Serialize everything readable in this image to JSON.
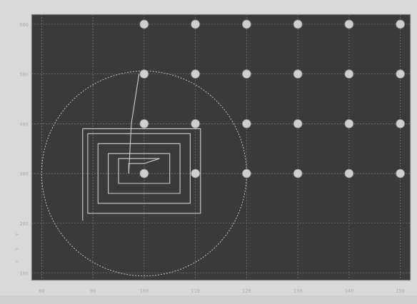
{
  "window": {
    "title": "",
    "status_text": "",
    "colors": {
      "plot_background": "#3a3a3a",
      "frame": "#d9d9d9",
      "grid": "#8a8a8a",
      "points": "#cfcfcf",
      "trace": "#cfcfcf"
    }
  },
  "chart_data": {
    "type": "scatter",
    "title": "",
    "xlabel": "",
    "ylabel": "",
    "x_ticks": [
      "80",
      "90",
      "100",
      "110",
      "120",
      "130",
      "140",
      "150"
    ],
    "y_ticks": [
      "600",
      "500",
      "400",
      "300",
      "200",
      "100"
    ],
    "xlim": [
      78,
      152
    ],
    "ylim": [
      85,
      620
    ],
    "grid": true,
    "series": [
      {
        "points": [
          [
            100,
            600
          ],
          [
            110,
            600
          ],
          [
            120,
            600
          ],
          [
            130,
            600
          ],
          [
            140,
            600
          ],
          [
            150,
            600
          ],
          [
            100,
            500
          ],
          [
            110,
            500
          ],
          [
            120,
            500
          ],
          [
            130,
            500
          ],
          [
            140,
            500
          ],
          [
            150,
            500
          ],
          [
            100,
            400
          ],
          [
            110,
            400
          ],
          [
            120,
            400
          ],
          [
            130,
            400
          ],
          [
            140,
            400
          ],
          [
            150,
            400
          ],
          [
            100,
            300
          ],
          [
            110,
            300
          ],
          [
            120,
            300
          ],
          [
            130,
            300
          ],
          [
            140,
            300
          ],
          [
            150,
            300
          ]
        ]
      }
    ],
    "circle": {
      "center": [
        100,
        300
      ],
      "radius_x": 20,
      "dashed": true
    },
    "spiral_path": [
      [
        99,
        500
      ],
      [
        97.5,
        400
      ],
      [
        97,
        300
      ],
      [
        97,
        320
      ],
      [
        100,
        320
      ],
      [
        103,
        330
      ],
      [
        95,
        330
      ],
      [
        95,
        280
      ],
      [
        105,
        280
      ],
      [
        105,
        340
      ],
      [
        93,
        340
      ],
      [
        93,
        260
      ],
      [
        107,
        260
      ],
      [
        107,
        360
      ],
      [
        91,
        360
      ],
      [
        91,
        240
      ],
      [
        109,
        240
      ],
      [
        109,
        380
      ],
      [
        89,
        380
      ],
      [
        89,
        220
      ],
      [
        111,
        220
      ],
      [
        111,
        390
      ],
      [
        88,
        390
      ],
      [
        88,
        205
      ]
    ]
  }
}
